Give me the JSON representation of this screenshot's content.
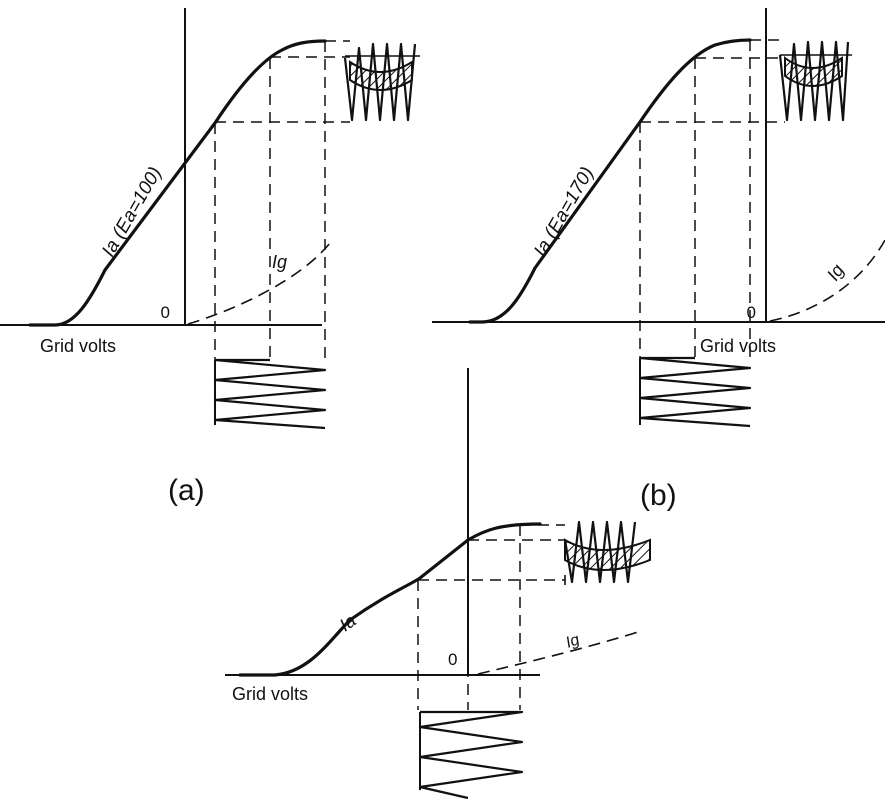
{
  "panels": [
    {
      "id": "a",
      "caption": "(a)",
      "x_axis_label": "Grid volts",
      "origin_label": "0",
      "anode_curve_label": "Ia (Ea=100)",
      "grid_curve_label": "Ig"
    },
    {
      "id": "b",
      "caption": "(b)",
      "x_axis_label": "Grid volts",
      "origin_label": "0",
      "anode_curve_label": "Ia (Ea=170)",
      "grid_curve_label": "Ig"
    },
    {
      "id": "c",
      "caption": "",
      "x_axis_label": "Grid volts",
      "origin_label": "0",
      "anode_curve_label": "Ia",
      "grid_curve_label": "Ig"
    }
  ],
  "colors": {
    "ink": "#111111",
    "paper": "#ffffff"
  }
}
